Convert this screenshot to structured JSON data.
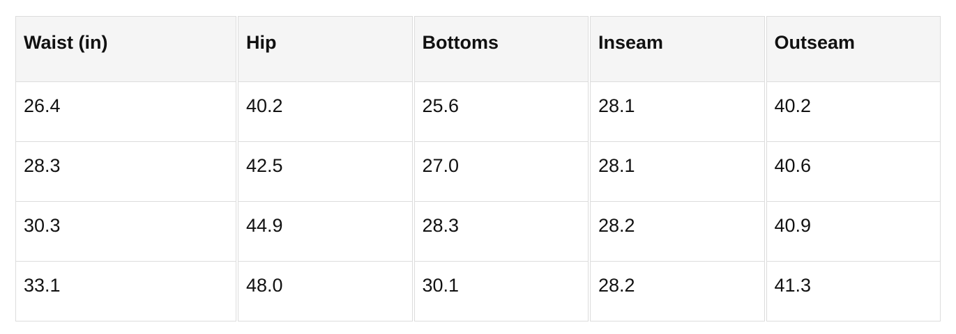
{
  "table": {
    "headers": [
      "Waist (in)",
      "Hip",
      "Bottoms",
      "Inseam",
      "Outseam"
    ],
    "rows": [
      [
        "26.4",
        "40.2",
        "25.6",
        "28.1",
        "40.2"
      ],
      [
        "28.3",
        "42.5",
        "27.0",
        "28.1",
        "40.6"
      ],
      [
        "30.3",
        "44.9",
        "28.3",
        "28.2",
        "40.9"
      ],
      [
        "33.1",
        "48.0",
        "30.1",
        "28.2",
        "41.3"
      ]
    ]
  },
  "chart_data": {
    "type": "table",
    "columns": [
      "Waist (in)",
      "Hip",
      "Bottoms",
      "Inseam",
      "Outseam"
    ],
    "rows": [
      [
        26.4,
        40.2,
        25.6,
        28.1,
        40.2
      ],
      [
        28.3,
        42.5,
        27.0,
        28.1,
        40.6
      ],
      [
        30.3,
        44.9,
        28.3,
        28.2,
        40.9
      ],
      [
        33.1,
        48.0,
        30.1,
        28.2,
        41.3
      ]
    ]
  },
  "colors": {
    "header_bg": "#f5f5f5",
    "border": "#dcdcdc",
    "text": "#111111",
    "background": "#ffffff"
  }
}
